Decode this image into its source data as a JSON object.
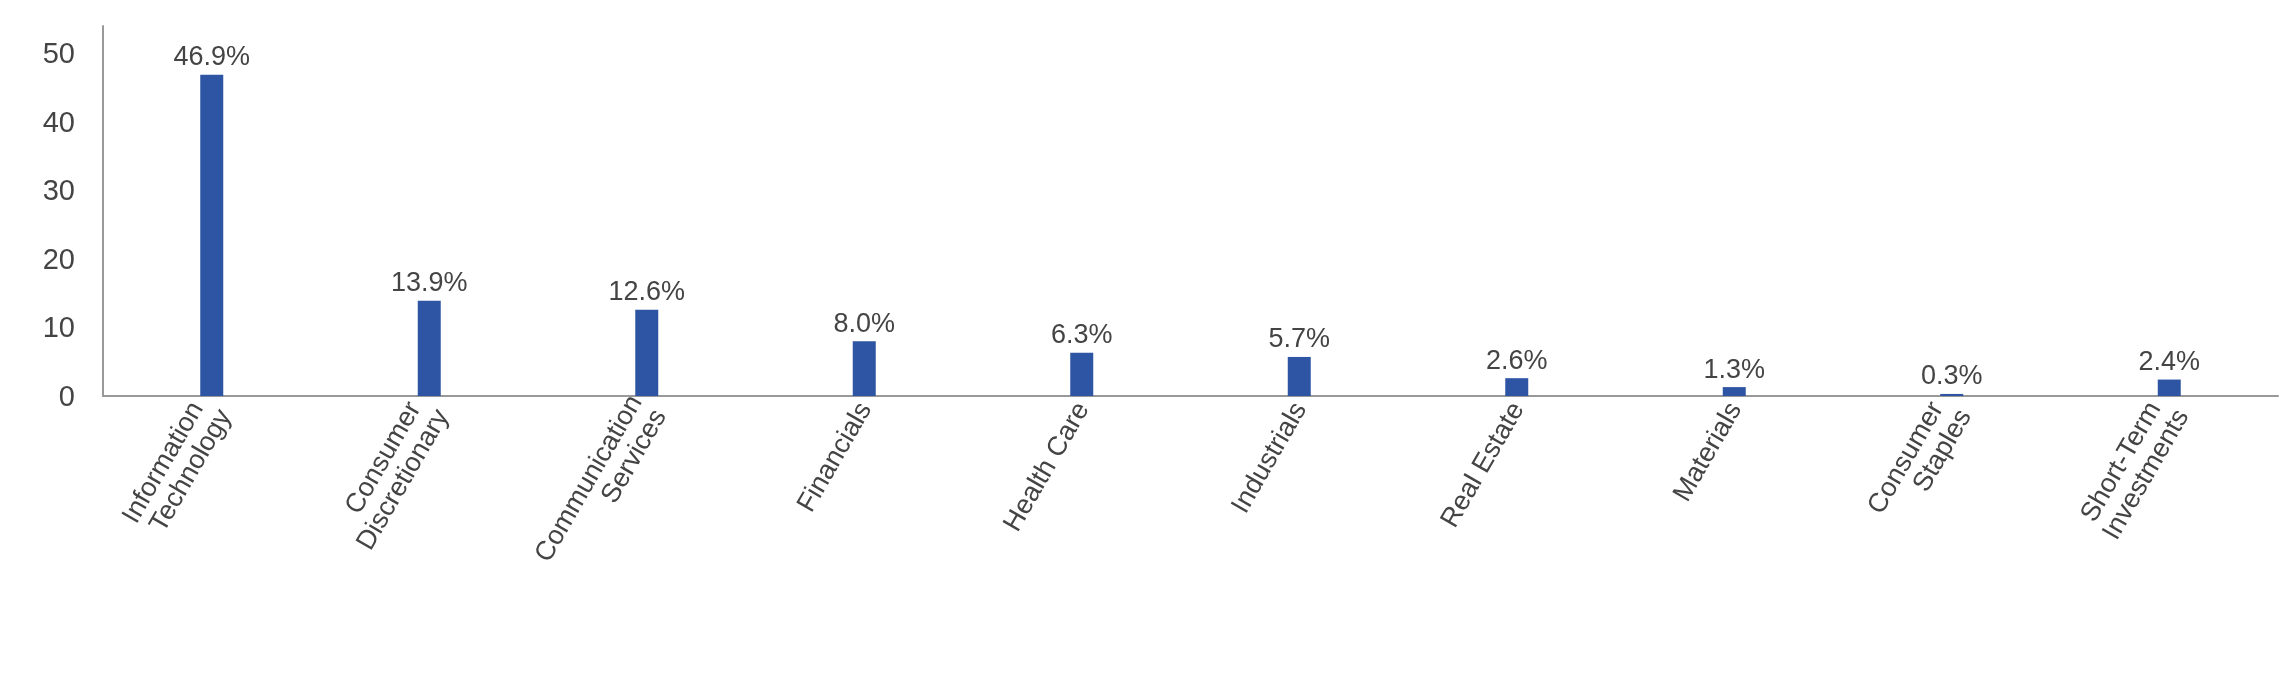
{
  "chart_data": {
    "type": "bar",
    "categories": [
      "Information Technology",
      "Consumer Discretionary",
      "Communication Services",
      "Financials",
      "Health Care",
      "Industrials",
      "Real Estate",
      "Materials",
      "Consumer Staples",
      "Short-Term Investments"
    ],
    "values": [
      46.9,
      13.9,
      12.6,
      8.0,
      6.3,
      5.7,
      2.6,
      1.3,
      0.3,
      2.4
    ],
    "value_labels": [
      "46.9%",
      "13.9%",
      "12.6%",
      "8.0%",
      "6.3%",
      "5.7%",
      "2.6%",
      "1.3%",
      "0.3%",
      "2.4%"
    ],
    "color": "#2e55a3",
    "ylim": [
      0,
      54
    ],
    "yticks": [
      0,
      10,
      20,
      30,
      40,
      50
    ],
    "grid": false
  }
}
